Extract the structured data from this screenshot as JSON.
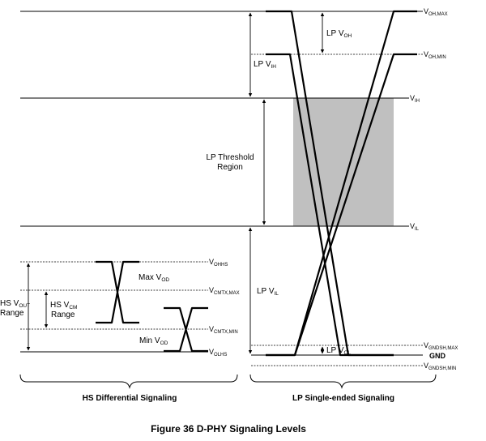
{
  "levels": {
    "voh_max": {
      "main": "V",
      "sub": "OH,MAX"
    },
    "voh_min": {
      "main": "V",
      "sub": "OH,MIN"
    },
    "vih": {
      "main": "V",
      "sub": "IH"
    },
    "vil": {
      "main": "V",
      "sub": "IL"
    },
    "vgndsh_max": {
      "main": "V",
      "sub": "GNDSH,MAX"
    },
    "gnd": "GND",
    "vgndsh_min": {
      "main": "V",
      "sub": "GNDSH,MIN"
    },
    "vohhs": {
      "main": "V",
      "sub": "OHHS"
    },
    "vcmtx_max": {
      "main": "V",
      "sub": "CMTX,MAX"
    },
    "vcmtx_min": {
      "main": "V",
      "sub": "CMTX,MIN"
    },
    "volhs": {
      "main": "V",
      "sub": "OLHS"
    }
  },
  "ranges": {
    "lp_voh": {
      "pre": "LP V",
      "sub": "OH"
    },
    "lp_vih": {
      "pre": "LP V",
      "sub": "IH"
    },
    "lp_threshold_line1": "LP Threshold",
    "lp_threshold_line2": "Region",
    "lp_vil": {
      "pre": "LP V",
      "sub": "IL"
    },
    "lp_vol": {
      "pre": "LP V",
      "sub": "OL"
    },
    "hs_vout_line1": {
      "pre": "HS V",
      "sub": "OUT"
    },
    "hs_vout_line2": "Range",
    "hs_vcm_line1": {
      "pre": "HS V",
      "sub": "CM"
    },
    "hs_vcm_line2": "Range",
    "max_vod": {
      "pre": "Max V",
      "sub": "OD"
    },
    "min_vod": {
      "pre": "Min V",
      "sub": "OD"
    }
  },
  "sections": {
    "hs_differential": "HS Differential Signaling",
    "lp_single_ended": "LP Single-ended Signaling"
  },
  "caption": "Figure 36 D-PHY Signaling Levels",
  "colors": {
    "threshold_region": "#c0c0c0",
    "lines": "#000000"
  }
}
